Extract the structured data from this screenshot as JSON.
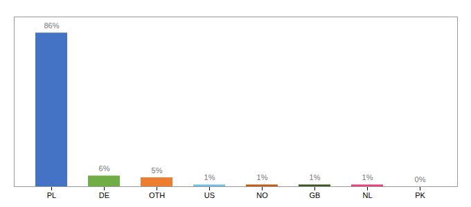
{
  "chart_data": {
    "type": "bar",
    "categories": [
      "PL",
      "DE",
      "OTH",
      "US",
      "NO",
      "GB",
      "NL",
      "PK"
    ],
    "values": [
      86,
      6,
      5,
      1,
      1,
      1,
      1,
      0
    ],
    "value_labels": [
      "86%",
      "6%",
      "5%",
      "1%",
      "1%",
      "1%",
      "1%",
      "0%"
    ],
    "colors": [
      "#4472C4",
      "#70AD47",
      "#ED7D31",
      "#70C0E8",
      "#C55A11",
      "#375623",
      "#E8417A",
      "#E8417A"
    ],
    "ylim": [
      0,
      95
    ],
    "data_labels": true,
    "tick_labels": "x",
    "grid": false
  }
}
